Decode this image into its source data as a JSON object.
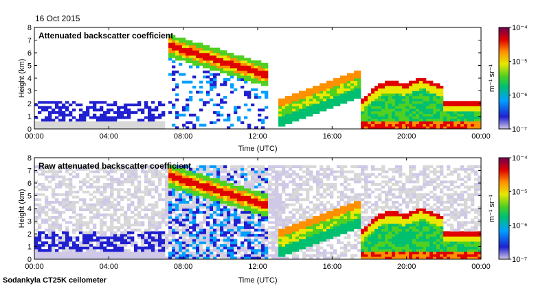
{
  "header": {
    "date": "16 Oct 2015"
  },
  "footer": {
    "instrument": "Sodankyla CT25K ceilometer"
  },
  "colors": {
    "background": "#ffffff",
    "colormap": [
      "#cfc8e6",
      "#2020d0",
      "#00a0ff",
      "#00c070",
      "#50d020",
      "#e8e800",
      "#ff9000",
      "#e00000",
      "#700050"
    ],
    "missing": "#d8d8d8"
  },
  "chart_data": [
    {
      "type": "heatmap",
      "title": "Attenuated backscatter coefficient",
      "xlabel": "Time (UTC)",
      "ylabel": "Height (km)",
      "xlim": [
        0,
        24
      ],
      "ylim": [
        0,
        8
      ],
      "x_ticks": [
        "00:00",
        "04:00",
        "08:00",
        "12:00",
        "16:00",
        "20:00",
        "00:00"
      ],
      "y_ticks": [
        "0",
        "1",
        "2",
        "3",
        "4",
        "5",
        "6",
        "7",
        "8"
      ],
      "colorbar": {
        "label": "m⁻¹ sr⁻¹",
        "scale": "log",
        "range": [
          1e-07,
          0.0001
        ],
        "ticks": [
          "10⁻⁷",
          "10⁻⁶",
          "10⁻⁵",
          "10⁻⁴"
        ]
      },
      "features": [
        {
          "feature": "weak boundary layer signal",
          "t_start": 0,
          "t_end": 7,
          "height_top_km": 2.3,
          "level": "10⁻⁷"
        },
        {
          "feature": "elevated cloud layer descending",
          "t_start": 7.2,
          "t_end": 12.6,
          "height_from_km": 6.6,
          "height_to_km": 4.1,
          "level": "10⁻⁵"
        },
        {
          "feature": "cloud rising",
          "t_start": 13.2,
          "t_end": 17.5,
          "height_from_km": 2.1,
          "height_to_km": 4.5,
          "level": "10⁻⁵"
        },
        {
          "feature": "low cloud / precipitation",
          "t_start": 17.5,
          "t_end": 24,
          "height_top_km": 4.2,
          "level": "10⁻⁵"
        }
      ]
    },
    {
      "type": "heatmap",
      "title": "Raw attenuated backscatter coefficient",
      "xlabel": "Time (UTC)",
      "ylabel": "Height (km)",
      "xlim": [
        0,
        24
      ],
      "ylim": [
        0,
        8
      ],
      "x_ticks": [
        "00:00",
        "04:00",
        "08:00",
        "12:00",
        "16:00",
        "20:00",
        "00:00"
      ],
      "y_ticks": [
        "0",
        "1",
        "2",
        "3",
        "4",
        "5",
        "6",
        "7",
        "8"
      ],
      "colorbar": {
        "label": "m⁻¹ sr⁻¹",
        "scale": "log",
        "range": [
          1e-07,
          0.0001
        ],
        "ticks": [
          "10⁻⁷",
          "10⁻⁶",
          "10⁻⁵",
          "10⁻⁴"
        ]
      },
      "features": [
        {
          "feature": "noise background",
          "t_start": 0,
          "t_end": 24,
          "height_top_km": 7.5,
          "level": "10⁻⁷"
        },
        {
          "feature": "elevated cloud layer descending",
          "t_start": 7.2,
          "t_end": 12.6,
          "height_from_km": 6.6,
          "height_to_km": 4.1,
          "level": "10⁻⁵"
        },
        {
          "feature": "low cloud / precipitation",
          "t_start": 17.5,
          "t_end": 24,
          "height_top_km": 4.2,
          "level": "10⁻⁵"
        }
      ]
    }
  ]
}
